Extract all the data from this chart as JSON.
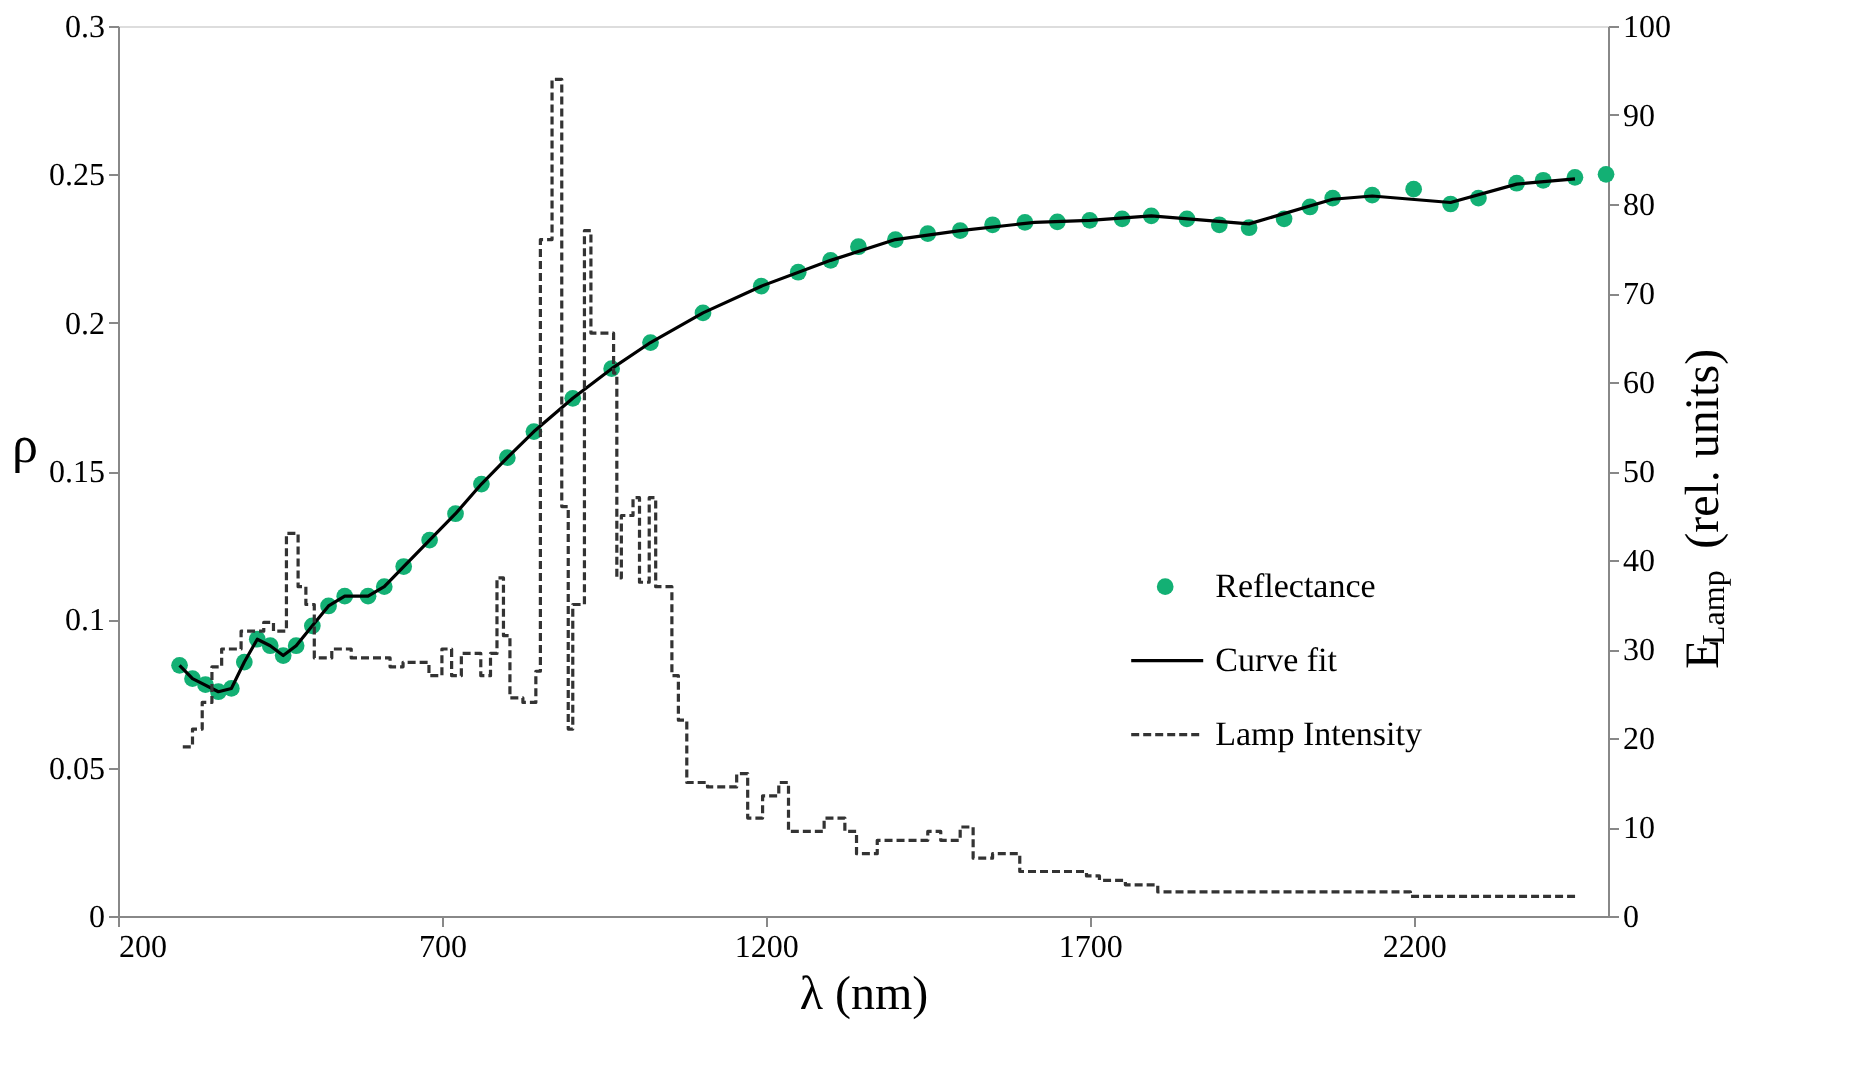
{
  "chart_data": {
    "type": "scatter",
    "xlabel": "λ (nm)",
    "ylabel": "ρ",
    "y2label": "E$_{Lamp}$ (rel. units)",
    "xlim": [
      200,
      2500
    ],
    "xticks": [
      200,
      700,
      1200,
      1700,
      2200
    ],
    "ylim": [
      0,
      0.3
    ],
    "yticks": [
      0,
      0.05,
      0.1,
      0.15,
      0.2,
      0.25,
      0.3
    ],
    "y2lim": [
      0,
      100
    ],
    "y2ticks": [
      0,
      10,
      20,
      30,
      40,
      50,
      60,
      70,
      80,
      90,
      100
    ],
    "grid": false,
    "legend": "right",
    "series": [
      {
        "name": "Reflectance",
        "marker": "circle",
        "color": "#13b074",
        "x": [
          295,
          315,
          335,
          355,
          375,
          395,
          415,
          435,
          455,
          475,
          500,
          525,
          550,
          586,
          611,
          641,
          681,
          721,
          761,
          801,
          842,
          902,
          962,
          1022,
          1103,
          1193,
          1250,
          1300,
          1343,
          1400,
          1450,
          1500,
          1550,
          1600,
          1650,
          1700,
          1750,
          1795,
          1850,
          1900,
          1946,
          2000,
          2040,
          2075,
          2136,
          2200,
          2257,
          2300,
          2359,
          2400,
          2449,
          2497
        ],
        "values": [
          0.0845,
          0.08,
          0.078,
          0.0756,
          0.0767,
          0.0856,
          0.0933,
          0.0911,
          0.0878,
          0.0911,
          0.0978,
          0.1045,
          0.1078,
          0.1078,
          0.111,
          0.1178,
          0.1267,
          0.1356,
          0.1456,
          0.1545,
          0.1633,
          0.1745,
          0.1845,
          0.1933,
          0.2033,
          0.2123,
          0.217,
          0.221,
          0.2256,
          0.228,
          0.23,
          0.231,
          0.233,
          0.2338,
          0.234,
          0.2345,
          0.235,
          0.236,
          0.235,
          0.233,
          0.232,
          0.235,
          0.239,
          0.242,
          0.243,
          0.245,
          0.24,
          0.242,
          0.247,
          0.248,
          0.249,
          0.25
        ]
      },
      {
        "name": "Curve fit",
        "type": "line",
        "line_style": "solid",
        "color": "#000000",
        "x": [
          295,
          315,
          355,
          375,
          395,
          415,
          435,
          455,
          475,
          500,
          525,
          550,
          586,
          611,
          641,
          681,
          721,
          761,
          801,
          842,
          902,
          962,
          1022,
          1103,
          1193,
          1300,
          1400,
          1500,
          1615,
          1700,
          1795,
          1946,
          2075,
          2136,
          2257,
          2359,
          2449
        ],
        "values": [
          0.0845,
          0.08,
          0.0756,
          0.0767,
          0.0856,
          0.0933,
          0.0911,
          0.0878,
          0.0911,
          0.0978,
          0.1045,
          0.1078,
          0.1078,
          0.111,
          0.1178,
          0.1267,
          0.1356,
          0.1456,
          0.1545,
          0.1633,
          0.1745,
          0.1845,
          0.1933,
          0.2033,
          0.2123,
          0.221,
          0.228,
          0.231,
          0.2338,
          0.2345,
          0.236,
          0.2333,
          0.2416,
          0.2427,
          0.2405,
          0.2467,
          0.2485
        ]
      },
      {
        "name": "Lamp Intensity",
        "type": "step",
        "axis": "y2",
        "line_style": "dashed",
        "color": "#333333",
        "x": [
          300,
          315,
          330,
          345,
          360,
          390,
          425,
          440,
          460,
          478,
          490,
          503,
          530,
          560,
          620,
          640,
          680,
          700,
          715,
          730,
          760,
          775,
          785,
          795,
          805,
          825,
          845,
          852,
          870,
          885,
          895,
          902,
          920,
          930,
          965,
          970,
          977,
          995,
          1005,
          1020,
          1030,
          1055,
          1065,
          1078,
          1110,
          1155,
          1172,
          1195,
          1220,
          1235,
          1290,
          1322,
          1340,
          1372,
          1450,
          1470,
          1500,
          1520,
          1550,
          1592,
          1695,
          1715,
          1755,
          1805,
          2195,
          2455
        ],
        "values": [
          19,
          21,
          24,
          28,
          30,
          32,
          33,
          32,
          43,
          37,
          35,
          29,
          30,
          29,
          28,
          28.5,
          27,
          30,
          27,
          29.5,
          27,
          29.5,
          38,
          31.5,
          24.5,
          24,
          27.5,
          76,
          94,
          46,
          21,
          35,
          77,
          65.5,
          61,
          38,
          45,
          47,
          37.5,
          47,
          37,
          27,
          22,
          15,
          14.5,
          16,
          11,
          13.5,
          15,
          9.5,
          11,
          9.5,
          7,
          8.5,
          9.5,
          8.5,
          10,
          6.5,
          7,
          5,
          4.5,
          4,
          3.5,
          2.7,
          2.2,
          2.2
        ]
      }
    ]
  }
}
